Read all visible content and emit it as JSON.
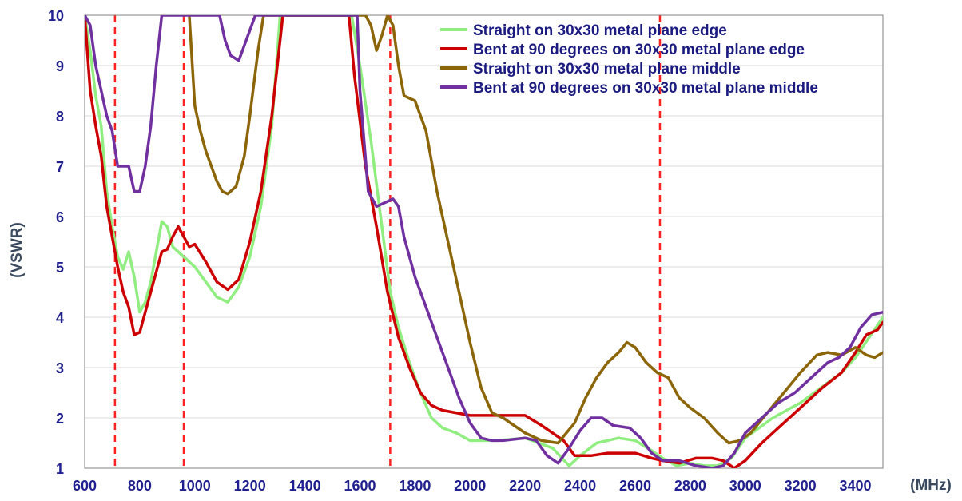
{
  "chart_data": {
    "type": "line",
    "xlabel": "(MHz)",
    "ylabel": "(VSWR)",
    "xlim": [
      600,
      3500
    ],
    "ylim": [
      1,
      10
    ],
    "x_ticks": [
      "600",
      "800",
      "1000",
      "1200",
      "1400",
      "1600",
      "1800",
      "2000",
      "2200",
      "2400",
      "2600",
      "2800",
      "3000",
      "3200",
      "3400"
    ],
    "y_ticks": [
      "1",
      "2",
      "3",
      "4",
      "5",
      "6",
      "7",
      "8",
      "9",
      "10"
    ],
    "grid": "horizontal",
    "legend_position": "top-right",
    "markers": [
      {
        "x": 710,
        "color": "#ff2020"
      },
      {
        "x": 960,
        "color": "#ff2020"
      },
      {
        "x": 1710,
        "color": "#ff2020"
      },
      {
        "x": 2690,
        "color": "#ff2020"
      }
    ],
    "series": [
      {
        "name": "Straight on 30x30 metal plane edge",
        "color": "#90ee80",
        "points": [
          [
            600,
            10
          ],
          [
            620,
            9.3
          ],
          [
            640,
            8.4
          ],
          [
            660,
            7.8
          ],
          [
            680,
            6.5
          ],
          [
            700,
            5.8
          ],
          [
            720,
            5.2
          ],
          [
            740,
            4.95
          ],
          [
            760,
            5.3
          ],
          [
            780,
            4.8
          ],
          [
            800,
            4.1
          ],
          [
            820,
            4.3
          ],
          [
            840,
            4.7
          ],
          [
            860,
            5.3
          ],
          [
            880,
            5.9
          ],
          [
            900,
            5.8
          ],
          [
            920,
            5.4
          ],
          [
            960,
            5.2
          ],
          [
            1000,
            5.0
          ],
          [
            1040,
            4.7
          ],
          [
            1080,
            4.4
          ],
          [
            1120,
            4.3
          ],
          [
            1160,
            4.6
          ],
          [
            1200,
            5.2
          ],
          [
            1240,
            6.2
          ],
          [
            1280,
            7.8
          ],
          [
            1310,
            10
          ],
          [
            1570,
            10
          ],
          [
            1600,
            9.0
          ],
          [
            1640,
            7.5
          ],
          [
            1680,
            5.8
          ],
          [
            1710,
            4.5
          ],
          [
            1740,
            3.8
          ],
          [
            1780,
            3.1
          ],
          [
            1820,
            2.5
          ],
          [
            1860,
            2.0
          ],
          [
            1900,
            1.8
          ],
          [
            1950,
            1.7
          ],
          [
            2000,
            1.55
          ],
          [
            2100,
            1.55
          ],
          [
            2200,
            1.6
          ],
          [
            2300,
            1.4
          ],
          [
            2360,
            1.05
          ],
          [
            2400,
            1.25
          ],
          [
            2460,
            1.5
          ],
          [
            2540,
            1.6
          ],
          [
            2600,
            1.55
          ],
          [
            2660,
            1.35
          ],
          [
            2700,
            1.2
          ],
          [
            2750,
            1.05
          ],
          [
            2800,
            1.1
          ],
          [
            2850,
            1.05
          ],
          [
            2900,
            1.05
          ],
          [
            2950,
            1.2
          ],
          [
            3000,
            1.6
          ],
          [
            3100,
            2.0
          ],
          [
            3200,
            2.3
          ],
          [
            3300,
            2.7
          ],
          [
            3350,
            2.9
          ],
          [
            3400,
            3.2
          ],
          [
            3450,
            3.6
          ],
          [
            3500,
            4.0
          ]
        ]
      },
      {
        "name": "Bent at 90 degrees on 30x30 metal plane edge",
        "color": "#cc0000",
        "points": [
          [
            600,
            10
          ],
          [
            620,
            8.5
          ],
          [
            640,
            7.8
          ],
          [
            660,
            7.2
          ],
          [
            680,
            6.2
          ],
          [
            700,
            5.6
          ],
          [
            720,
            5.0
          ],
          [
            740,
            4.5
          ],
          [
            760,
            4.2
          ],
          [
            780,
            3.65
          ],
          [
            800,
            3.7
          ],
          [
            820,
            4.1
          ],
          [
            850,
            4.7
          ],
          [
            880,
            5.3
          ],
          [
            900,
            5.35
          ],
          [
            920,
            5.6
          ],
          [
            940,
            5.8
          ],
          [
            960,
            5.6
          ],
          [
            980,
            5.4
          ],
          [
            1000,
            5.45
          ],
          [
            1040,
            5.1
          ],
          [
            1080,
            4.7
          ],
          [
            1120,
            4.55
          ],
          [
            1160,
            4.75
          ],
          [
            1200,
            5.5
          ],
          [
            1240,
            6.5
          ],
          [
            1280,
            8.0
          ],
          [
            1320,
            10
          ],
          [
            1560,
            10
          ],
          [
            1580,
            8.8
          ],
          [
            1620,
            7.0
          ],
          [
            1660,
            5.8
          ],
          [
            1700,
            4.5
          ],
          [
            1740,
            3.6
          ],
          [
            1780,
            3.0
          ],
          [
            1820,
            2.5
          ],
          [
            1860,
            2.25
          ],
          [
            1900,
            2.15
          ],
          [
            2000,
            2.05
          ],
          [
            2100,
            2.05
          ],
          [
            2200,
            2.05
          ],
          [
            2260,
            1.85
          ],
          [
            2300,
            1.7
          ],
          [
            2340,
            1.55
          ],
          [
            2380,
            1.25
          ],
          [
            2440,
            1.25
          ],
          [
            2500,
            1.3
          ],
          [
            2600,
            1.3
          ],
          [
            2660,
            1.2
          ],
          [
            2700,
            1.15
          ],
          [
            2760,
            1.1
          ],
          [
            2820,
            1.2
          ],
          [
            2880,
            1.2
          ],
          [
            2920,
            1.15
          ],
          [
            2960,
            1.0
          ],
          [
            3000,
            1.15
          ],
          [
            3060,
            1.5
          ],
          [
            3120,
            1.8
          ],
          [
            3200,
            2.2
          ],
          [
            3280,
            2.6
          ],
          [
            3350,
            2.9
          ],
          [
            3400,
            3.3
          ],
          [
            3440,
            3.65
          ],
          [
            3480,
            3.75
          ],
          [
            3500,
            3.9
          ]
        ]
      },
      {
        "name": "Straight on 30x30 metal plane middle",
        "color": "#8b6508",
        "points": [
          [
            980,
            10
          ],
          [
            1000,
            8.2
          ],
          [
            1020,
            7.7
          ],
          [
            1040,
            7.3
          ],
          [
            1060,
            7.0
          ],
          [
            1080,
            6.7
          ],
          [
            1100,
            6.5
          ],
          [
            1120,
            6.45
          ],
          [
            1150,
            6.6
          ],
          [
            1180,
            7.2
          ],
          [
            1200,
            8.0
          ],
          [
            1230,
            9.3
          ],
          [
            1250,
            10
          ],
          [
            1620,
            10
          ],
          [
            1640,
            9.8
          ],
          [
            1660,
            9.3
          ],
          [
            1680,
            9.6
          ],
          [
            1700,
            10
          ],
          [
            1720,
            9.8
          ],
          [
            1740,
            9.0
          ],
          [
            1760,
            8.4
          ],
          [
            1800,
            8.3
          ],
          [
            1840,
            7.7
          ],
          [
            1880,
            6.5
          ],
          [
            1920,
            5.5
          ],
          [
            1960,
            4.5
          ],
          [
            2000,
            3.5
          ],
          [
            2040,
            2.6
          ],
          [
            2080,
            2.1
          ],
          [
            2120,
            2.0
          ],
          [
            2160,
            1.85
          ],
          [
            2200,
            1.7
          ],
          [
            2260,
            1.55
          ],
          [
            2320,
            1.5
          ],
          [
            2380,
            1.9
          ],
          [
            2420,
            2.4
          ],
          [
            2460,
            2.8
          ],
          [
            2500,
            3.1
          ],
          [
            2540,
            3.3
          ],
          [
            2570,
            3.5
          ],
          [
            2600,
            3.4
          ],
          [
            2640,
            3.1
          ],
          [
            2680,
            2.9
          ],
          [
            2720,
            2.8
          ],
          [
            2760,
            2.4
          ],
          [
            2800,
            2.2
          ],
          [
            2850,
            2.0
          ],
          [
            2900,
            1.7
          ],
          [
            2940,
            1.5
          ],
          [
            2980,
            1.55
          ],
          [
            3020,
            1.7
          ],
          [
            3080,
            2.1
          ],
          [
            3140,
            2.5
          ],
          [
            3200,
            2.9
          ],
          [
            3260,
            3.25
          ],
          [
            3300,
            3.3
          ],
          [
            3350,
            3.25
          ],
          [
            3400,
            3.4
          ],
          [
            3440,
            3.25
          ],
          [
            3470,
            3.2
          ],
          [
            3500,
            3.3
          ]
        ]
      },
      {
        "name": "Bent at 90 degrees on 30x30 metal plane middle",
        "color": "#7030a0",
        "points": [
          [
            600,
            10
          ],
          [
            620,
            9.8
          ],
          [
            640,
            9.0
          ],
          [
            660,
            8.5
          ],
          [
            680,
            8.0
          ],
          [
            700,
            7.7
          ],
          [
            720,
            7.0
          ],
          [
            760,
            7.0
          ],
          [
            780,
            6.5
          ],
          [
            800,
            6.5
          ],
          [
            820,
            7.0
          ],
          [
            840,
            7.8
          ],
          [
            860,
            9.0
          ],
          [
            880,
            10
          ],
          [
            1090,
            10
          ],
          [
            1110,
            9.5
          ],
          [
            1130,
            9.2
          ],
          [
            1160,
            9.1
          ],
          [
            1180,
            9.4
          ],
          [
            1220,
            10
          ],
          [
            1590,
            10
          ],
          [
            1600,
            8.5
          ],
          [
            1630,
            6.5
          ],
          [
            1660,
            6.2
          ],
          [
            1700,
            6.3
          ],
          [
            1720,
            6.35
          ],
          [
            1740,
            6.2
          ],
          [
            1760,
            5.6
          ],
          [
            1800,
            4.8
          ],
          [
            1840,
            4.2
          ],
          [
            1880,
            3.6
          ],
          [
            1920,
            3.0
          ],
          [
            1960,
            2.4
          ],
          [
            2000,
            1.9
          ],
          [
            2040,
            1.6
          ],
          [
            2080,
            1.55
          ],
          [
            2120,
            1.55
          ],
          [
            2200,
            1.6
          ],
          [
            2240,
            1.55
          ],
          [
            2280,
            1.25
          ],
          [
            2320,
            1.1
          ],
          [
            2360,
            1.4
          ],
          [
            2400,
            1.75
          ],
          [
            2440,
            2.0
          ],
          [
            2480,
            2.0
          ],
          [
            2520,
            1.85
          ],
          [
            2580,
            1.8
          ],
          [
            2620,
            1.6
          ],
          [
            2660,
            1.3
          ],
          [
            2700,
            1.15
          ],
          [
            2760,
            1.15
          ],
          [
            2820,
            1.05
          ],
          [
            2880,
            1.0
          ],
          [
            2920,
            1.05
          ],
          [
            2960,
            1.3
          ],
          [
            3000,
            1.7
          ],
          [
            3060,
            2.0
          ],
          [
            3120,
            2.3
          ],
          [
            3180,
            2.5
          ],
          [
            3240,
            2.8
          ],
          [
            3300,
            3.1
          ],
          [
            3340,
            3.2
          ],
          [
            3380,
            3.4
          ],
          [
            3420,
            3.8
          ],
          [
            3460,
            4.05
          ],
          [
            3500,
            4.1
          ]
        ]
      }
    ]
  }
}
